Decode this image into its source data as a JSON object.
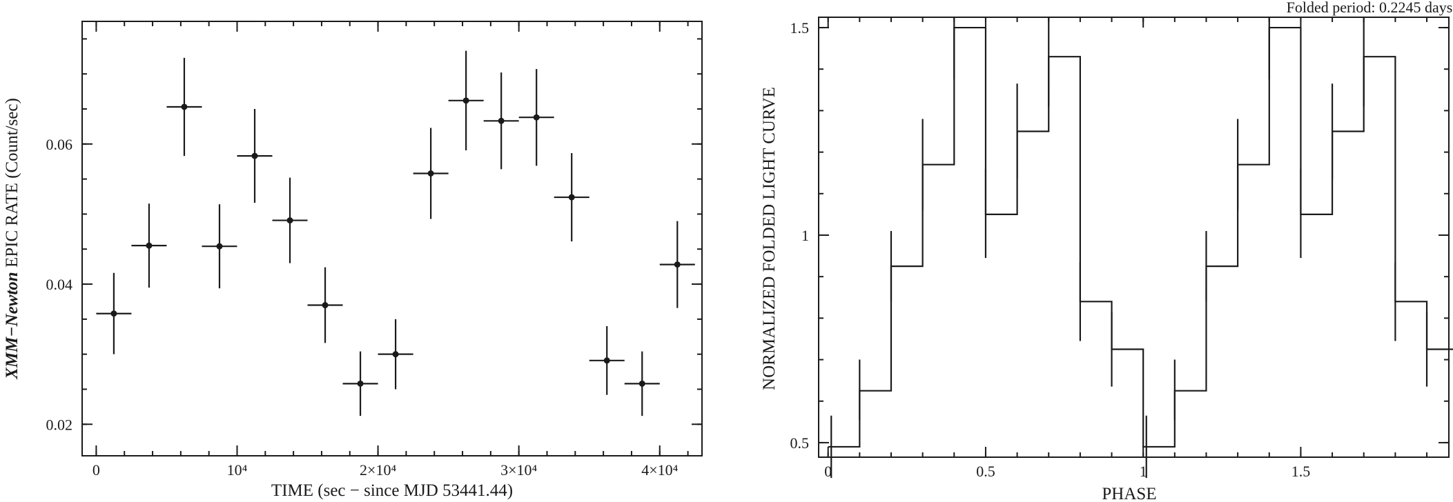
{
  "chart_data": [
    {
      "type": "scatter",
      "title": "",
      "xlabel": "TIME (sec − since MJD 53441.44)",
      "ylabel_prefix": "XMM−Newton",
      "ylabel_suffix": " EPIC RATE (Count/sec)",
      "xlim": [
        -1000,
        43000
      ],
      "ylim": [
        0.0155,
        0.0775
      ],
      "x_ticks": [
        {
          "value": 0,
          "label": "0"
        },
        {
          "value": 10000,
          "label": "10⁴"
        },
        {
          "value": 20000,
          "label": "2×10⁴"
        },
        {
          "value": 30000,
          "label": "3×10⁴"
        },
        {
          "value": 40000,
          "label": "4×10⁴"
        }
      ],
      "x_minor_step": 2000,
      "y_ticks": [
        {
          "value": 0.02,
          "label": "0.02"
        },
        {
          "value": 0.04,
          "label": "0.04"
        },
        {
          "value": 0.06,
          "label": "0.06"
        }
      ],
      "y_minor_step": 0.005,
      "bin_half_width": 1250,
      "points": [
        {
          "x": 1250,
          "y": 0.0358,
          "yerr": 0.0058
        },
        {
          "x": 3750,
          "y": 0.0455,
          "yerr": 0.006
        },
        {
          "x": 6250,
          "y": 0.0653,
          "yerr": 0.007
        },
        {
          "x": 8750,
          "y": 0.0454,
          "yerr": 0.006
        },
        {
          "x": 11250,
          "y": 0.0583,
          "yerr": 0.0067
        },
        {
          "x": 13750,
          "y": 0.0491,
          "yerr": 0.0061
        },
        {
          "x": 16250,
          "y": 0.037,
          "yerr": 0.0054
        },
        {
          "x": 18750,
          "y": 0.0258,
          "yerr": 0.0046
        },
        {
          "x": 21250,
          "y": 0.03,
          "yerr": 0.005
        },
        {
          "x": 23750,
          "y": 0.0558,
          "yerr": 0.0065
        },
        {
          "x": 26250,
          "y": 0.0662,
          "yerr": 0.0071
        },
        {
          "x": 28750,
          "y": 0.0633,
          "yerr": 0.0069
        },
        {
          "x": 31250,
          "y": 0.0638,
          "yerr": 0.0069
        },
        {
          "x": 33750,
          "y": 0.0524,
          "yerr": 0.0063
        },
        {
          "x": 36250,
          "y": 0.0291,
          "yerr": 0.0049
        },
        {
          "x": 38750,
          "y": 0.0258,
          "yerr": 0.0046
        },
        {
          "x": 41250,
          "y": 0.0428,
          "yerr": 0.0062
        }
      ]
    },
    {
      "type": "line",
      "step": true,
      "title": "Folded period: 0.2245 days",
      "xlabel": "PHASE",
      "ylabel": "NORMALIZED FOLDED LIGHT CURVE",
      "xlim": [
        -0.03,
        1.97
      ],
      "ylim": [
        0.465,
        1.525
      ],
      "x_ticks": [
        {
          "value": 0,
          "label": "0"
        },
        {
          "value": 0.5,
          "label": "0.5"
        },
        {
          "value": 1,
          "label": "1"
        },
        {
          "value": 1.5,
          "label": "1.5"
        }
      ],
      "x_minor_step": 0.1,
      "y_ticks": [
        {
          "value": 0.5,
          "label": "0.5"
        },
        {
          "value": 1,
          "label": "1"
        },
        {
          "value": 1.5,
          "label": "1.5"
        }
      ],
      "y_minor_step": 0.1,
      "bin_width": 0.05,
      "phase": [
        0.025,
        0.075,
        0.125,
        0.175,
        0.225,
        0.275,
        0.325,
        0.375,
        0.425,
        0.475,
        0.525,
        0.575,
        0.625,
        0.675,
        0.725,
        0.775,
        0.825,
        0.875,
        0.925,
        0.975,
        1.025,
        1.075,
        1.125,
        1.175,
        1.225,
        1.275,
        1.325,
        1.375,
        1.425,
        1.475,
        1.525,
        1.575,
        1.625,
        1.675,
        1.725,
        1.775,
        1.825,
        1.875,
        1.925,
        1.975
      ],
      "values": [
        0.49,
        0.49,
        0.625,
        0.625,
        0.925,
        0.925,
        1.17,
        1.17,
        1.5,
        1.5,
        1.05,
        1.05,
        1.25,
        1.25,
        1.43,
        1.43,
        0.84,
        0.84,
        0.725,
        0.725,
        0.49,
        0.49,
        0.625,
        0.625,
        0.925,
        0.925,
        1.17,
        1.17,
        1.5,
        1.5,
        1.05,
        1.05,
        1.25,
        1.25,
        1.43,
        1.43,
        0.84,
        0.84,
        0.725,
        0.725
      ],
      "errors": [
        {
          "x": 0.01,
          "y": 0.49,
          "lo": 0.415,
          "hi": 0.565
        },
        {
          "x": 0.1,
          "y": 0.625,
          "lo": 0.555,
          "hi": 0.7
        },
        {
          "x": 0.2,
          "y": 0.925,
          "lo": 0.84,
          "hi": 1.01
        },
        {
          "x": 0.3,
          "y": 1.17,
          "lo": 1.06,
          "hi": 1.28
        },
        {
          "x": 0.4,
          "y": 1.5,
          "lo": 1.375,
          "hi": 1.525
        },
        {
          "x": 0.5,
          "y": 1.05,
          "lo": 0.945,
          "hi": 1.16
        },
        {
          "x": 0.6,
          "y": 1.25,
          "lo": 1.135,
          "hi": 1.365
        },
        {
          "x": 0.7,
          "y": 1.43,
          "lo": 1.31,
          "hi": 1.525
        },
        {
          "x": 0.8,
          "y": 0.84,
          "lo": 0.745,
          "hi": 0.935
        },
        {
          "x": 0.9,
          "y": 0.725,
          "lo": 0.635,
          "hi": 0.815
        },
        {
          "x": 1.01,
          "y": 0.49,
          "lo": 0.415,
          "hi": 0.565
        },
        {
          "x": 1.1,
          "y": 0.625,
          "lo": 0.555,
          "hi": 0.7
        },
        {
          "x": 1.2,
          "y": 0.925,
          "lo": 0.84,
          "hi": 1.01
        },
        {
          "x": 1.3,
          "y": 1.17,
          "lo": 1.06,
          "hi": 1.28
        },
        {
          "x": 1.4,
          "y": 1.5,
          "lo": 1.375,
          "hi": 1.525
        },
        {
          "x": 1.5,
          "y": 1.05,
          "lo": 0.945,
          "hi": 1.16
        },
        {
          "x": 1.6,
          "y": 1.25,
          "lo": 1.135,
          "hi": 1.365
        },
        {
          "x": 1.7,
          "y": 1.43,
          "lo": 1.31,
          "hi": 1.525
        },
        {
          "x": 1.8,
          "y": 0.84,
          "lo": 0.745,
          "hi": 0.935
        },
        {
          "x": 1.9,
          "y": 0.725,
          "lo": 0.635,
          "hi": 0.815
        }
      ]
    }
  ]
}
